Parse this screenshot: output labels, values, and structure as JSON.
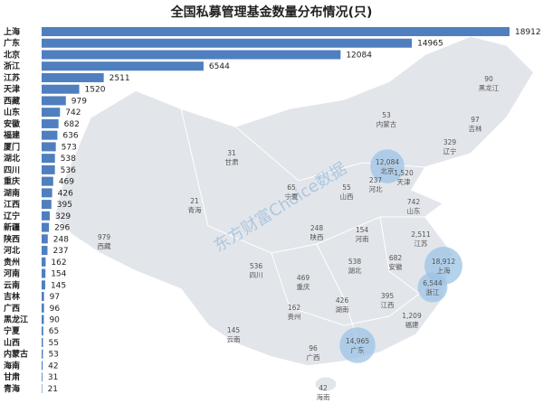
{
  "watermark": "东方财富Choice数据",
  "chart_data": [
    {
      "type": "bar",
      "title": "全国私募管理基金数量分布情况(只)",
      "color": "#4f7fbf",
      "categories": [
        "上海",
        "广东",
        "北京",
        "浙江",
        "江苏",
        "天津",
        "西藏",
        "山东",
        "安徽",
        "福建",
        "厦门",
        "湖北",
        "四川",
        "重庆",
        "湖南",
        "江西",
        "辽宁",
        "新疆",
        "陕西",
        "河北",
        "贵州",
        "河南",
        "云南",
        "吉林",
        "广西",
        "黑龙江",
        "宁夏",
        "山西",
        "内蒙古",
        "海南",
        "甘肃",
        "青海"
      ],
      "values": [
        18912,
        14965,
        12084,
        6544,
        2511,
        1520,
        979,
        742,
        682,
        636,
        573,
        538,
        536,
        469,
        426,
        395,
        329,
        296,
        248,
        237,
        162,
        154,
        145,
        97,
        96,
        90,
        65,
        55,
        53,
        42,
        31,
        21
      ]
    },
    {
      "type": "map",
      "color": "#9cc3e6",
      "categories": [
        "黑龙江",
        "吉林",
        "辽宁",
        "内蒙古",
        "北京",
        "天津",
        "河北",
        "山东",
        "甘肃",
        "宁夏",
        "山西",
        "青海",
        "陕西",
        "河南",
        "江苏",
        "西藏",
        "安徽",
        "湖北",
        "四川",
        "重庆",
        "上海",
        "浙江",
        "贵州",
        "湖南",
        "江西",
        "福建",
        "云南",
        "广东",
        "广西",
        "海南"
      ],
      "values": [
        90,
        97,
        329,
        53,
        12084,
        1520,
        237,
        742,
        31,
        65,
        55,
        21,
        248,
        154,
        2511,
        979,
        682,
        538,
        536,
        469,
        18912,
        6544,
        162,
        426,
        395,
        1209,
        145,
        14965,
        96,
        42
      ],
      "value_labels": [
        "90",
        "97",
        "329",
        "53",
        "12,084",
        "1,520",
        "237",
        "742",
        "31",
        "65",
        "55",
        "21",
        "248",
        "154",
        "2,511",
        "979",
        "682",
        "538",
        "536",
        "469",
        "18,912",
        "6,544",
        "162",
        "426",
        "395",
        "1,209",
        "145",
        "14,965",
        "96",
        "42"
      ]
    }
  ]
}
